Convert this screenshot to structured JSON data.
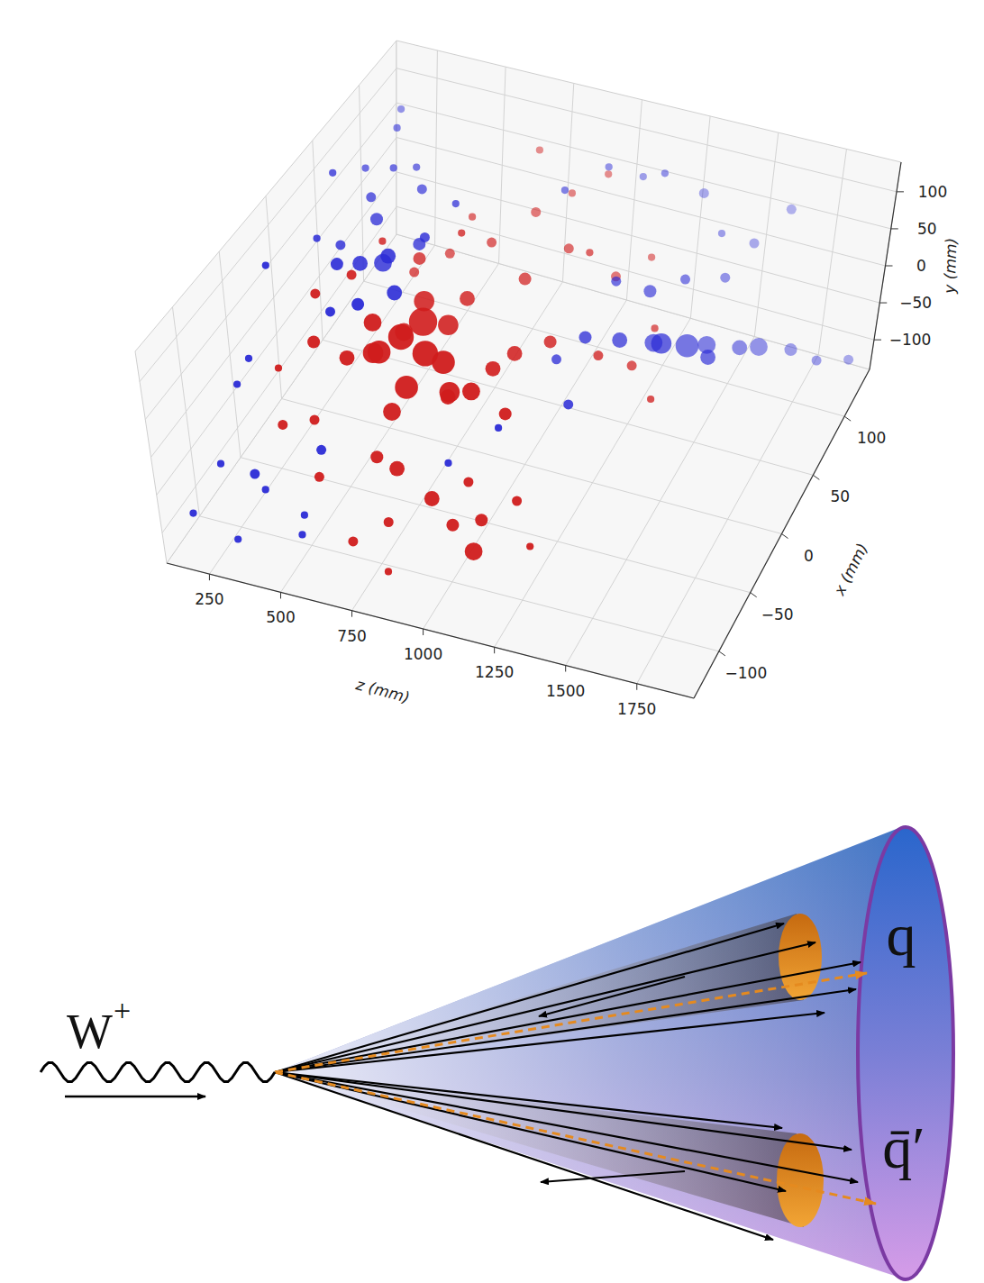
{
  "chart_data": {
    "type": "scatter3d",
    "x_label": "x (mm)",
    "y_label": "y (mm)",
    "z_label": "z (mm)",
    "xlim": [
      -140,
      140
    ],
    "ylim": [
      -140,
      140
    ],
    "zlim": [
      100,
      1950
    ],
    "xticks": [
      {
        "value": -100,
        "label": "−100"
      },
      {
        "value": -50,
        "label": "−50"
      },
      0,
      50,
      100
    ],
    "yticks": [
      {
        "value": -100,
        "label": "−100"
      },
      {
        "value": -50,
        "label": "−50"
      },
      0,
      50,
      100
    ],
    "zticks": [
      250,
      500,
      750,
      1000,
      1250,
      1500,
      1750
    ],
    "grid": true,
    "marker": "circle",
    "series": [
      {
        "color": "#d01c1c",
        "z": [
          550,
          600,
          500,
          650,
          575,
          525,
          700,
          450,
          625,
          675,
          750,
          600,
          800,
          500,
          400,
          700,
          850,
          950,
          1050,
          600,
          900,
          1000,
          750,
          1100,
          1200,
          650,
          800,
          700,
          800,
          900,
          1000,
          850,
          950,
          1050,
          750,
          650,
          1100,
          1200,
          1300,
          1150,
          1000,
          900,
          1250,
          1350,
          300,
          250,
          350,
          400,
          300,
          350,
          450,
          200,
          500,
          550,
          450,
          600,
          700,
          800,
          850,
          950
        ],
        "x": [
          0,
          10,
          -10,
          -5,
          20,
          -25,
          0,
          0,
          -20,
          15,
          -10,
          -30,
          0,
          20,
          -15,
          -60,
          -70,
          -80,
          -90,
          -50,
          -40,
          -60,
          -90,
          -50,
          -70,
          -100,
          -110,
          60,
          80,
          90,
          100,
          50,
          70,
          60,
          100,
          40,
          80,
          90,
          60,
          40,
          30,
          20,
          50,
          40,
          -20,
          0,
          10,
          30,
          -60,
          -40,
          -70,
          -30,
          40,
          60,
          50,
          70,
          30,
          -30,
          10,
          -10
        ],
        "y": [
          -10,
          0,
          -20,
          -15,
          10,
          5,
          -30,
          0,
          -40,
          -5,
          -50,
          -60,
          -60,
          -40,
          -30,
          -80,
          -90,
          -100,
          -110,
          -90,
          -110,
          -120,
          -100,
          -100,
          -120,
          -120,
          -130,
          40,
          60,
          80,
          100,
          20,
          40,
          60,
          110,
          80,
          0,
          20,
          -20,
          -40,
          -20,
          -30,
          -60,
          -80,
          -10,
          20,
          40,
          60,
          -60,
          -80,
          -100,
          -40,
          30,
          10,
          -10,
          50,
          10,
          -20,
          -40,
          -60
        ],
        "size": [
          9,
          10,
          8,
          9,
          7,
          7,
          8,
          6,
          8,
          7,
          7,
          6,
          6,
          6,
          5,
          5,
          5,
          4,
          6,
          4,
          3,
          4,
          3,
          3,
          2,
          3,
          2,
          3,
          3,
          2,
          2,
          4,
          3,
          2,
          2,
          2,
          3,
          2,
          2,
          3,
          4,
          5,
          3,
          2,
          4,
          3,
          3,
          2,
          3,
          3,
          3,
          2,
          4,
          3,
          3,
          2,
          5,
          5,
          5,
          4
        ]
      },
      {
        "color": "#2b2bd6",
        "z": [
          350,
          400,
          300,
          450,
          350,
          400,
          250,
          300,
          500,
          450,
          400,
          350,
          550,
          200,
          250,
          500,
          600,
          300,
          150,
          200,
          150,
          200,
          250,
          300,
          350,
          150,
          200,
          250,
          400,
          450,
          500,
          300,
          1100,
          1200,
          1300,
          1350,
          1400,
          1450,
          1500,
          1550,
          1600,
          1700,
          1800,
          1900,
          1250,
          1350,
          1150,
          1450,
          900,
          1000,
          1100,
          1200,
          1300,
          1400,
          1500,
          1600,
          1000,
          1100,
          900,
          800
        ],
        "x": [
          20,
          30,
          10,
          20,
          40,
          0,
          30,
          50,
          40,
          60,
          70,
          60,
          30,
          20,
          60,
          10,
          50,
          0,
          -60,
          -100,
          -20,
          40,
          -80,
          -120,
          -100,
          -120,
          -60,
          100,
          -50,
          -90,
          -110,
          80,
          40,
          50,
          60,
          50,
          70,
          80,
          60,
          90,
          100,
          110,
          110,
          120,
          70,
          80,
          60,
          100,
          80,
          100,
          110,
          100,
          120,
          110,
          120,
          130,
          40,
          20,
          0,
          -30
        ],
        "y": [
          40,
          30,
          50,
          60,
          70,
          20,
          40,
          80,
          50,
          90,
          100,
          110,
          80,
          60,
          100,
          30,
          100,
          0,
          -20,
          -60,
          80,
          120,
          -100,
          -120,
          -80,
          -100,
          20,
          120,
          -100,
          -120,
          -110,
          130,
          -20,
          -30,
          -40,
          -20,
          -50,
          -60,
          -40,
          -70,
          -80,
          -90,
          -95,
          -100,
          10,
          20,
          30,
          0,
          100,
          110,
          90,
          120,
          70,
          40,
          20,
          60,
          -60,
          -80,
          -100,
          -110
        ],
        "size": [
          5,
          6,
          4,
          5,
          4,
          4,
          3,
          3,
          4,
          3,
          2,
          2,
          3,
          2,
          2,
          5,
          2,
          3,
          2,
          2,
          2,
          2,
          3,
          2,
          2,
          2,
          2,
          2,
          3,
          2,
          2,
          2,
          4,
          5,
          6,
          7,
          8,
          6,
          5,
          5,
          6,
          4,
          3,
          3,
          4,
          3,
          3,
          3,
          2,
          2,
          2,
          2,
          3,
          2,
          3,
          3,
          3,
          3,
          2,
          2
        ]
      }
    ]
  },
  "diagram": {
    "boson": "W",
    "boson_charge": "+",
    "jets": [
      "q",
      "q̄′"
    ]
  }
}
